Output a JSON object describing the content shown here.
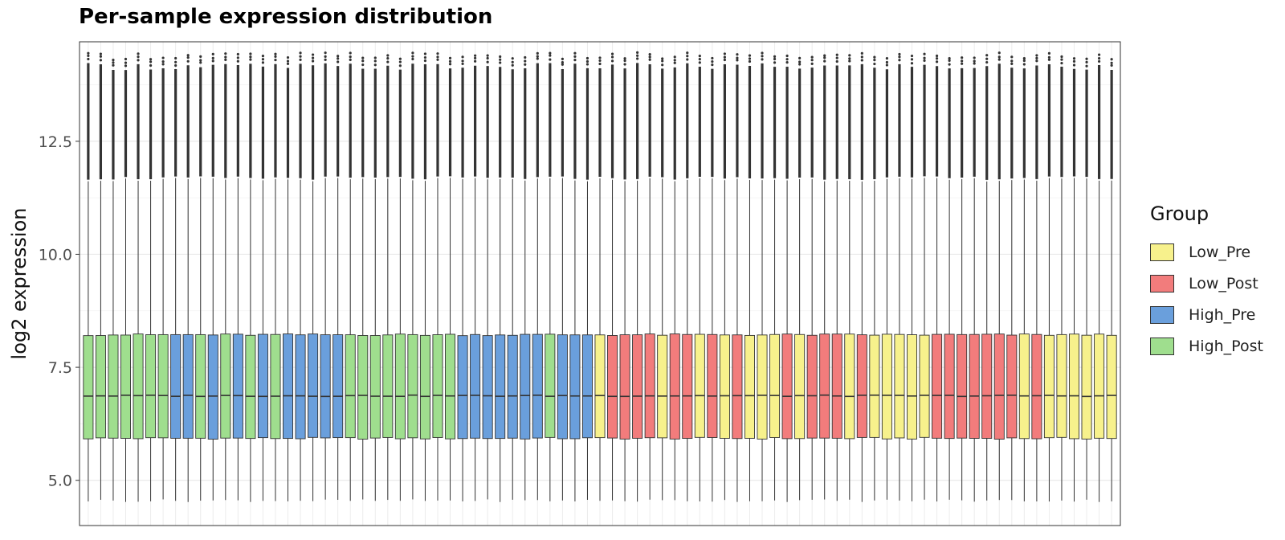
{
  "chart_data": {
    "type": "boxplot",
    "title": "Per-sample expression distribution",
    "xlabel": "",
    "ylabel": "log2 expression",
    "ylim": [
      4.0,
      14.7
    ],
    "yticks": [
      5.0,
      7.5,
      10.0,
      12.5
    ],
    "ytick_labels": [
      "5.0",
      "7.5",
      "10.0",
      "12.5"
    ],
    "grid": true,
    "legend": {
      "title": "Group",
      "placement": "right",
      "entries": [
        {
          "name": "Low_Pre",
          "color": "#F7F18C"
        },
        {
          "name": "Low_Post",
          "color": "#F27C7C"
        },
        {
          "name": "High_Pre",
          "color": "#6A9FDC"
        },
        {
          "name": "High_Post",
          "color": "#9FDE8E"
        }
      ]
    },
    "box_stats": {
      "whisker_low": 4.55,
      "q1": 5.93,
      "median": 6.87,
      "q3": 8.22,
      "whisker_high": 11.65,
      "outlier_max": 14.25
    },
    "samples": [
      "High_Post",
      "High_Post",
      "High_Post",
      "High_Post",
      "High_Post",
      "High_Post",
      "High_Post",
      "High_Pre",
      "High_Pre",
      "High_Post",
      "High_Pre",
      "High_Post",
      "High_Pre",
      "High_Post",
      "High_Pre",
      "High_Post",
      "High_Pre",
      "High_Pre",
      "High_Pre",
      "High_Pre",
      "High_Pre",
      "High_Post",
      "High_Post",
      "High_Post",
      "High_Post",
      "High_Post",
      "High_Post",
      "High_Post",
      "High_Post",
      "High_Post",
      "High_Pre",
      "High_Pre",
      "High_Pre",
      "High_Pre",
      "High_Pre",
      "High_Pre",
      "High_Pre",
      "High_Post",
      "High_Pre",
      "High_Pre",
      "High_Pre",
      "Low_Pre",
      "Low_Post",
      "Low_Post",
      "Low_Post",
      "Low_Post",
      "Low_Pre",
      "Low_Post",
      "Low_Post",
      "Low_Pre",
      "Low_Post",
      "Low_Pre",
      "Low_Post",
      "Low_Pre",
      "Low_Pre",
      "Low_Pre",
      "Low_Post",
      "Low_Pre",
      "Low_Post",
      "Low_Post",
      "Low_Post",
      "Low_Pre",
      "Low_Post",
      "Low_Pre",
      "Low_Pre",
      "Low_Pre",
      "Low_Pre",
      "Low_Pre",
      "Low_Post",
      "Low_Post",
      "Low_Post",
      "Low_Post",
      "Low_Post",
      "Low_Post",
      "Low_Post",
      "Low_Pre",
      "Low_Post",
      "Low_Pre",
      "Low_Pre",
      "Low_Pre",
      "Low_Pre",
      "Low_Pre",
      "Low_Pre"
    ]
  }
}
